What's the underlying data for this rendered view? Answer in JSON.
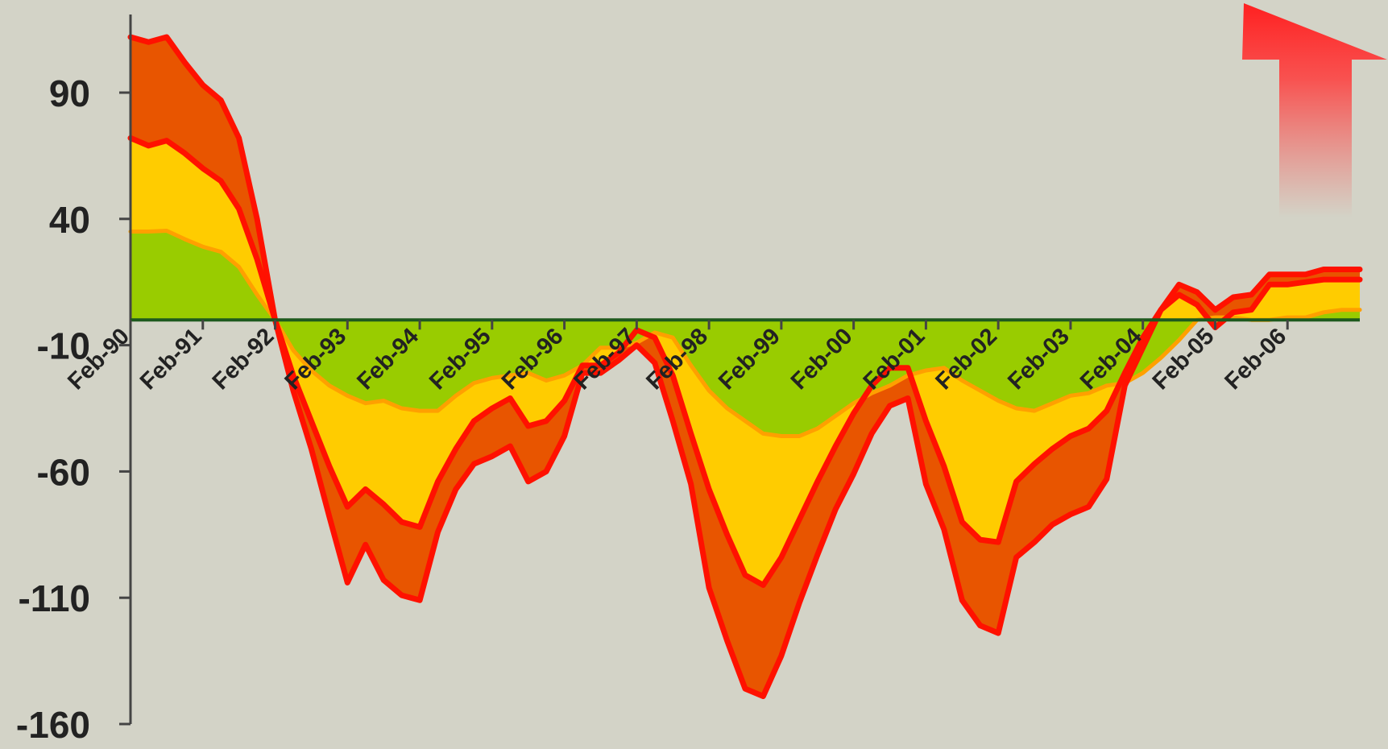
{
  "chart_data": {
    "type": "area",
    "title": "",
    "xlabel": "",
    "ylabel": "",
    "ylim": [
      -160,
      115
    ],
    "y_ticks": [
      "90",
      "40",
      "-10",
      "-60",
      "-110",
      "-160"
    ],
    "y_tick_values": [
      90,
      40,
      -10,
      -60,
      -110,
      -160
    ],
    "x_ticks": [
      "Feb-90",
      "Feb-91",
      "Feb-92",
      "Feb-93",
      "Feb-94",
      "Feb-95",
      "Feb-96",
      "Feb-97",
      "Feb-98",
      "Feb-99",
      "Feb-00",
      "Feb-01",
      "Feb-02",
      "Feb-03",
      "Feb-04",
      "Feb-05",
      "Feb-06"
    ],
    "x_start": "1990-02",
    "x_end": "2007-02",
    "stacking": "cumulative bands stacked away from zero (green innermost, then yellow, then orange)",
    "series": [
      {
        "color": "#99cc00",
        "points": [
          [
            1990.09,
            35
          ],
          [
            1990.34,
            35
          ],
          [
            1990.59,
            35.3
          ],
          [
            1990.84,
            32
          ],
          [
            1991.09,
            29
          ],
          [
            1991.34,
            27
          ],
          [
            1991.59,
            21
          ],
          [
            1991.84,
            10
          ],
          [
            1992.09,
            0
          ],
          [
            1992.34,
            -12
          ],
          [
            1992.59,
            -20
          ],
          [
            1992.84,
            -26
          ],
          [
            1993.09,
            -30
          ],
          [
            1993.34,
            -33
          ],
          [
            1993.59,
            -32
          ],
          [
            1993.84,
            -35
          ],
          [
            1994.09,
            -36
          ],
          [
            1994.34,
            -36
          ],
          [
            1994.59,
            -30
          ],
          [
            1994.84,
            -25
          ],
          [
            1995.09,
            -23
          ],
          [
            1995.34,
            -22
          ],
          [
            1995.59,
            -21
          ],
          [
            1995.84,
            -24
          ],
          [
            1996.09,
            -22
          ],
          [
            1996.34,
            -18
          ],
          [
            1996.59,
            -11
          ],
          [
            1996.84,
            -11
          ],
          [
            1997.09,
            -9
          ],
          [
            1997.34,
            -5
          ],
          [
            1997.59,
            -7
          ],
          [
            1997.84,
            -18
          ],
          [
            1998.09,
            -28
          ],
          [
            1998.34,
            -35
          ],
          [
            1998.59,
            -40
          ],
          [
            1998.84,
            -45
          ],
          [
            1999.09,
            -46
          ],
          [
            1999.34,
            -46
          ],
          [
            1999.59,
            -43
          ],
          [
            1999.84,
            -38
          ],
          [
            2000.09,
            -33
          ],
          [
            2000.34,
            -29
          ],
          [
            2000.59,
            -26
          ],
          [
            2000.84,
            -22
          ],
          [
            2001.09,
            -20
          ],
          [
            2001.34,
            -19
          ],
          [
            2001.59,
            -24
          ],
          [
            2001.84,
            -28
          ],
          [
            2002.09,
            -32
          ],
          [
            2002.34,
            -35
          ],
          [
            2002.59,
            -36
          ],
          [
            2002.84,
            -33
          ],
          [
            2003.09,
            -30
          ],
          [
            2003.34,
            -29
          ],
          [
            2003.59,
            -26
          ],
          [
            2003.84,
            -25
          ],
          [
            2004.09,
            -21
          ],
          [
            2004.34,
            -15
          ],
          [
            2004.59,
            -8
          ],
          [
            2004.84,
            0
          ],
          [
            2005.09,
            1
          ],
          [
            2005.34,
            1
          ],
          [
            2005.59,
            0
          ],
          [
            2005.84,
            0
          ],
          [
            2006.09,
            1
          ],
          [
            2006.34,
            1
          ],
          [
            2006.59,
            3
          ],
          [
            2006.84,
            4
          ],
          [
            2007.09,
            4
          ]
        ]
      },
      {
        "color": "#ffcc00",
        "points": [
          [
            1990.09,
            72
          ],
          [
            1990.34,
            69
          ],
          [
            1990.59,
            71
          ],
          [
            1990.84,
            66
          ],
          [
            1991.09,
            60
          ],
          [
            1991.34,
            55
          ],
          [
            1991.59,
            44
          ],
          [
            1991.84,
            24
          ],
          [
            1992.09,
            0
          ],
          [
            1992.34,
            -22
          ],
          [
            1992.59,
            -40
          ],
          [
            1992.84,
            -58
          ],
          [
            1993.09,
            -74
          ],
          [
            1993.34,
            -67
          ],
          [
            1993.59,
            -73
          ],
          [
            1993.84,
            -80
          ],
          [
            1994.09,
            -82
          ],
          [
            1994.34,
            -64
          ],
          [
            1994.59,
            -51
          ],
          [
            1994.84,
            -40
          ],
          [
            1995.09,
            -35
          ],
          [
            1995.34,
            -31
          ],
          [
            1995.59,
            -42
          ],
          [
            1995.84,
            -40
          ],
          [
            1996.09,
            -32
          ],
          [
            1996.34,
            -18
          ],
          [
            1996.59,
            -18
          ],
          [
            1996.84,
            -13
          ],
          [
            1997.09,
            -4
          ],
          [
            1997.34,
            -7
          ],
          [
            1997.59,
            -22
          ],
          [
            1997.84,
            -45
          ],
          [
            1998.09,
            -67
          ],
          [
            1998.34,
            -85
          ],
          [
            1998.59,
            -101
          ],
          [
            1998.84,
            -105
          ],
          [
            1999.09,
            -94
          ],
          [
            1999.34,
            -79
          ],
          [
            1999.59,
            -64
          ],
          [
            1999.84,
            -50
          ],
          [
            2000.09,
            -37
          ],
          [
            2000.34,
            -26
          ],
          [
            2000.59,
            -19
          ],
          [
            2000.84,
            -19
          ],
          [
            2001.09,
            -40
          ],
          [
            2001.34,
            -58
          ],
          [
            2001.59,
            -80
          ],
          [
            2001.84,
            -87
          ],
          [
            2002.09,
            -88
          ],
          [
            2002.34,
            -64
          ],
          [
            2002.59,
            -57
          ],
          [
            2002.84,
            -51
          ],
          [
            2003.09,
            -46
          ],
          [
            2003.34,
            -43
          ],
          [
            2003.59,
            -36
          ],
          [
            2003.84,
            -21
          ],
          [
            2004.09,
            -7
          ],
          [
            2004.34,
            4
          ],
          [
            2004.59,
            10
          ],
          [
            2004.84,
            6
          ],
          [
            2005.09,
            -3
          ],
          [
            2005.34,
            3
          ],
          [
            2005.59,
            4
          ],
          [
            2005.84,
            14
          ],
          [
            2006.09,
            14
          ],
          [
            2006.34,
            15
          ],
          [
            2006.59,
            16
          ],
          [
            2006.84,
            16
          ],
          [
            2007.09,
            16
          ]
        ]
      },
      {
        "color": "#e85500",
        "points": [
          [
            1990.09,
            112
          ],
          [
            1990.34,
            110
          ],
          [
            1990.59,
            112
          ],
          [
            1990.84,
            102
          ],
          [
            1991.09,
            93
          ],
          [
            1991.34,
            87
          ],
          [
            1991.59,
            72
          ],
          [
            1991.84,
            40
          ],
          [
            1992.09,
            0
          ],
          [
            1992.34,
            -28
          ],
          [
            1992.59,
            -51
          ],
          [
            1992.84,
            -78
          ],
          [
            1993.09,
            -104
          ],
          [
            1993.34,
            -89
          ],
          [
            1993.59,
            -103
          ],
          [
            1993.84,
            -109
          ],
          [
            1994.09,
            -111
          ],
          [
            1994.34,
            -84
          ],
          [
            1994.59,
            -67
          ],
          [
            1994.84,
            -57
          ],
          [
            1995.09,
            -54
          ],
          [
            1995.34,
            -50
          ],
          [
            1995.59,
            -64
          ],
          [
            1995.84,
            -60
          ],
          [
            1996.09,
            -46
          ],
          [
            1996.34,
            -21
          ],
          [
            1996.59,
            -21
          ],
          [
            1996.84,
            -16
          ],
          [
            1997.09,
            -10
          ],
          [
            1997.34,
            -17
          ],
          [
            1997.59,
            -40
          ],
          [
            1997.84,
            -65
          ],
          [
            1998.09,
            -106
          ],
          [
            1998.34,
            -127
          ],
          [
            1998.59,
            -146
          ],
          [
            1998.84,
            -149
          ],
          [
            1999.09,
            -133
          ],
          [
            1999.34,
            -112
          ],
          [
            1999.59,
            -93
          ],
          [
            1999.84,
            -75
          ],
          [
            2000.09,
            -61
          ],
          [
            2000.34,
            -45
          ],
          [
            2000.59,
            -34
          ],
          [
            2000.84,
            -31
          ],
          [
            2001.09,
            -65
          ],
          [
            2001.34,
            -83
          ],
          [
            2001.59,
            -111
          ],
          [
            2001.84,
            -121
          ],
          [
            2002.09,
            -124
          ],
          [
            2002.34,
            -94
          ],
          [
            2002.59,
            -88
          ],
          [
            2002.84,
            -81
          ],
          [
            2003.09,
            -77
          ],
          [
            2003.34,
            -74
          ],
          [
            2003.59,
            -63
          ],
          [
            2003.84,
            -26
          ],
          [
            2004.09,
            -11
          ],
          [
            2004.34,
            4
          ],
          [
            2004.59,
            14
          ],
          [
            2004.84,
            11
          ],
          [
            2005.09,
            4
          ],
          [
            2005.34,
            9
          ],
          [
            2005.59,
            10
          ],
          [
            2005.84,
            18
          ],
          [
            2006.09,
            18
          ],
          [
            2006.34,
            18
          ],
          [
            2006.59,
            20
          ],
          [
            2006.84,
            20
          ],
          [
            2007.09,
            20
          ]
        ]
      }
    ],
    "legend": "none",
    "grid": false,
    "annotation": "red upward arrow, top-right"
  },
  "colors": {
    "background": "#d3d3c7",
    "axis": "#444444",
    "outline_red": "#ff1100",
    "outline_orange": "#ffa000",
    "zero_line": "#1e5a1e",
    "arrow": "#ff2020"
  }
}
